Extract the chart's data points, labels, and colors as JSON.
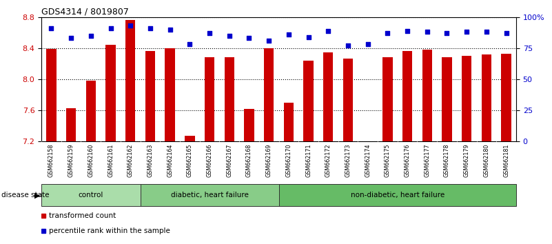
{
  "title": "GDS4314 / 8019807",
  "samples": [
    "GSM662158",
    "GSM662159",
    "GSM662160",
    "GSM662161",
    "GSM662162",
    "GSM662163",
    "GSM662164",
    "GSM662165",
    "GSM662166",
    "GSM662167",
    "GSM662168",
    "GSM662169",
    "GSM662170",
    "GSM662171",
    "GSM662172",
    "GSM662173",
    "GSM662174",
    "GSM662175",
    "GSM662176",
    "GSM662177",
    "GSM662178",
    "GSM662179",
    "GSM662180",
    "GSM662181"
  ],
  "bar_values": [
    8.39,
    7.63,
    7.98,
    8.44,
    8.76,
    8.36,
    8.4,
    7.27,
    8.28,
    8.28,
    7.62,
    8.4,
    7.7,
    8.24,
    8.35,
    8.27,
    7.2,
    8.28,
    8.36,
    8.38,
    8.28,
    8.3,
    8.32,
    8.33
  ],
  "percentile_values": [
    91,
    83,
    85,
    91,
    93,
    91,
    90,
    78,
    87,
    85,
    83,
    81,
    86,
    84,
    89,
    77,
    78,
    87,
    89,
    88,
    87,
    88,
    88,
    87
  ],
  "ylim_left": [
    7.2,
    8.8
  ],
  "ylim_right": [
    0,
    100
  ],
  "yticks_left": [
    7.2,
    7.6,
    8.0,
    8.4,
    8.8
  ],
  "yticks_right": [
    0,
    25,
    50,
    75,
    100
  ],
  "ytick_labels_right": [
    "0",
    "25",
    "50",
    "75",
    "100%"
  ],
  "bar_color": "#cc0000",
  "dot_color": "#0000cc",
  "groups": [
    {
      "label": "control",
      "start": 0,
      "end": 5,
      "color": "#aaddaa"
    },
    {
      "label": "diabetic, heart failure",
      "start": 5,
      "end": 12,
      "color": "#88cc88"
    },
    {
      "label": "non-diabetic, heart failure",
      "start": 12,
      "end": 24,
      "color": "#66bb66"
    }
  ],
  "disease_state_label": "disease state",
  "legend_items": [
    {
      "label": "transformed count",
      "color": "#cc0000"
    },
    {
      "label": "percentile rank within the sample",
      "color": "#0000cc"
    }
  ],
  "bg_color": "#ffffff",
  "tick_color_left": "#cc0000",
  "tick_color_right": "#0000cc",
  "xticklabel_bg": "#cccccc",
  "group_border_color": "#333333",
  "gridline_color": "#000000"
}
